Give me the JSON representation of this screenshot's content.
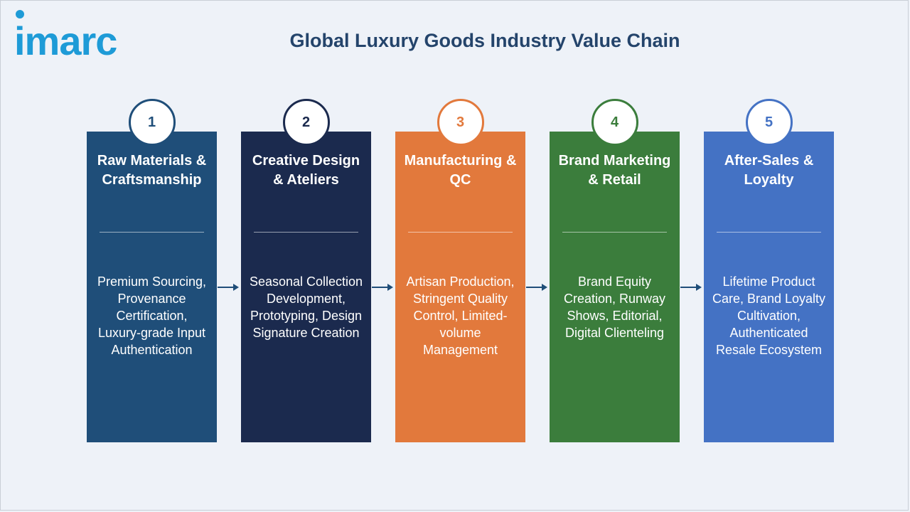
{
  "logo": {
    "text": "imarc"
  },
  "title": "Global Luxury Goods Industry Value Chain",
  "steps": [
    {
      "number": "1",
      "title": "Raw Materials & Craftsmanship",
      "description": "Premium Sourcing, Provenance Certification, Luxury-grade Input Authentication",
      "color": "#1f4e79"
    },
    {
      "number": "2",
      "title": "Creative Design & Ateliers",
      "description": "Seasonal Collection Development, Prototyping, Design Signature Creation",
      "color": "#1b2a4e"
    },
    {
      "number": "3",
      "title": "Manufacturing & QC",
      "description": "Artisan Production, Stringent Quality Control, Limited-volume Management",
      "color": "#e2793c"
    },
    {
      "number": "4",
      "title": "Brand Marketing & Retail",
      "description": "Brand Equity Creation, Runway Shows, Editorial, Digital Clienteling",
      "color": "#3b7d3c"
    },
    {
      "number": "5",
      "title": "After-Sales & Loyalty",
      "description": "Lifetime Product Care, Brand Loyalty Cultivation, Authenticated Resale Ecosystem",
      "color": "#4472c4"
    }
  ],
  "colors": {
    "title": "#24446b",
    "logo": "#1e9bd7",
    "arrow": "#1f4e79",
    "background": "#eef2f8"
  }
}
